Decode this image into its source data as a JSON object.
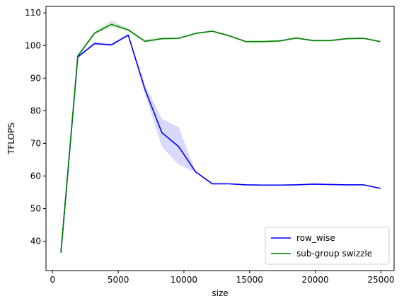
{
  "chart_data": {
    "type": "line",
    "title": "",
    "xlabel": "size",
    "ylabel": "TFLOPS",
    "xlim": [
      -500,
      26000
    ],
    "ylim": [
      31,
      112
    ],
    "xticks": [
      0,
      5000,
      10000,
      15000,
      20000,
      25000
    ],
    "yticks": [
      40,
      50,
      60,
      70,
      80,
      90,
      100,
      110
    ],
    "grid": false,
    "legend_position": "lower-right",
    "x": [
      640,
      1920,
      3200,
      4480,
      5760,
      7040,
      8320,
      9600,
      10880,
      12160,
      13440,
      14720,
      16000,
      17280,
      18560,
      19840,
      21120,
      22400,
      23680,
      24960
    ],
    "series": [
      {
        "name": "row_wise",
        "color": "#0000ff",
        "values": [
          36.5,
          96.5,
          100.6,
          100.2,
          103.2,
          86.5,
          73.3,
          69.0,
          61.3,
          57.6,
          57.6,
          57.3,
          57.2,
          57.2,
          57.3,
          57.5,
          57.4,
          57.3,
          57.3,
          56.2
        ],
        "band_low": [
          34.5,
          96.0,
          100.2,
          99.8,
          102.8,
          85.0,
          69.0,
          63.5,
          61.0,
          57.3,
          57.4,
          57.1,
          57.0,
          57.0,
          57.1,
          57.3,
          57.2,
          57.1,
          57.1,
          56.0
        ],
        "band_high": [
          37.5,
          97.0,
          101.0,
          100.6,
          103.6,
          88.0,
          77.5,
          75.0,
          61.6,
          57.9,
          57.8,
          57.5,
          57.4,
          57.4,
          57.5,
          57.7,
          57.6,
          57.5,
          57.5,
          56.4
        ]
      },
      {
        "name": "sub-group swizzle",
        "color": "#008000",
        "values": [
          36.8,
          96.8,
          103.8,
          106.5,
          104.8,
          101.3,
          102.1,
          102.2,
          103.7,
          104.4,
          103.0,
          101.2,
          101.2,
          101.4,
          102.3,
          101.5,
          101.5,
          102.1,
          102.2,
          101.2
        ],
        "band_low": [
          35.8,
          96.3,
          103.4,
          105.6,
          104.4,
          100.8,
          101.7,
          101.9,
          103.4,
          104.1,
          102.7,
          100.9,
          100.9,
          101.1,
          102.0,
          101.2,
          101.2,
          101.8,
          101.9,
          100.9
        ],
        "band_high": [
          37.5,
          97.3,
          104.2,
          107.8,
          105.2,
          101.8,
          102.5,
          102.5,
          104.0,
          104.7,
          103.3,
          101.5,
          101.5,
          101.7,
          102.6,
          101.8,
          101.8,
          102.4,
          102.5,
          101.5
        ]
      }
    ]
  }
}
